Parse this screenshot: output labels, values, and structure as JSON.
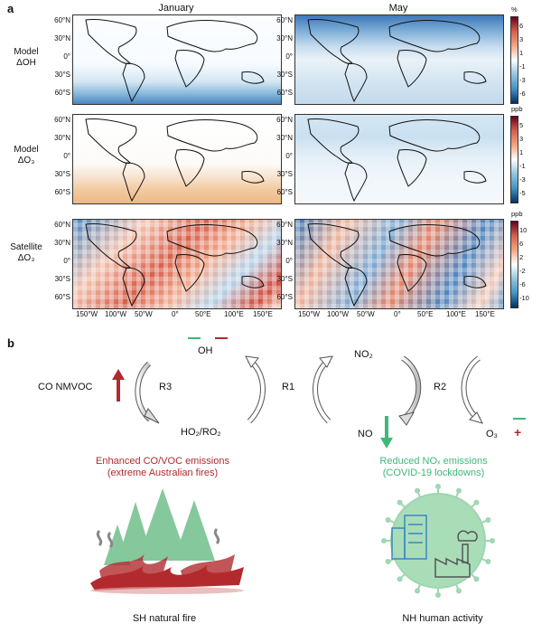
{
  "panel_a": {
    "label": "a",
    "columns": [
      "January",
      "May"
    ],
    "rows": [
      {
        "l1": "Model",
        "l2": "ΔOH",
        "unit": "%",
        "ticks": [
          "6",
          "3",
          "1",
          "-1",
          "-3",
          "-6"
        ]
      },
      {
        "l1": "Model",
        "l2": "ΔO₃",
        "unit": "ppb",
        "ticks": [
          "5",
          "3",
          "1",
          "-1",
          "-3",
          "-5"
        ]
      },
      {
        "l1": "Satellite",
        "l2": "ΔO₃",
        "unit": "ppb",
        "ticks": [
          "10",
          "6",
          "2",
          "-2",
          "-6",
          "-10"
        ]
      }
    ],
    "lat_ticks": [
      "60°N",
      "30°N",
      "0°",
      "30°S",
      "60°S"
    ],
    "lon_ticks": [
      "150°W",
      "100°W",
      "50°W",
      "0°",
      "50°E",
      "100°E",
      "150°E"
    ],
    "colors": {
      "pos": "#b2182b",
      "neg": "#2166ac"
    }
  },
  "panel_b": {
    "label": "b",
    "oh": "OH",
    "co_nmvoc": "CO NMVOC",
    "r3": "R3",
    "r1": "R1",
    "r2": "R2",
    "ho2": "HO₂/RO₂",
    "no2": "NO₂",
    "no": "NO",
    "o3": "O₃",
    "plus": "+",
    "enhanced_1": "Enhanced CO/VOC emissions",
    "enhanced_2": "(extreme Australian fires)",
    "reduced_1": "Reduced NOₓ emissions",
    "reduced_2": "(COVID-19 lockdowns)",
    "sh_label": "SH natural fire",
    "nh_label": "NH human activity",
    "colors": {
      "red": "#b22a2e",
      "green": "#3fb87a"
    }
  }
}
